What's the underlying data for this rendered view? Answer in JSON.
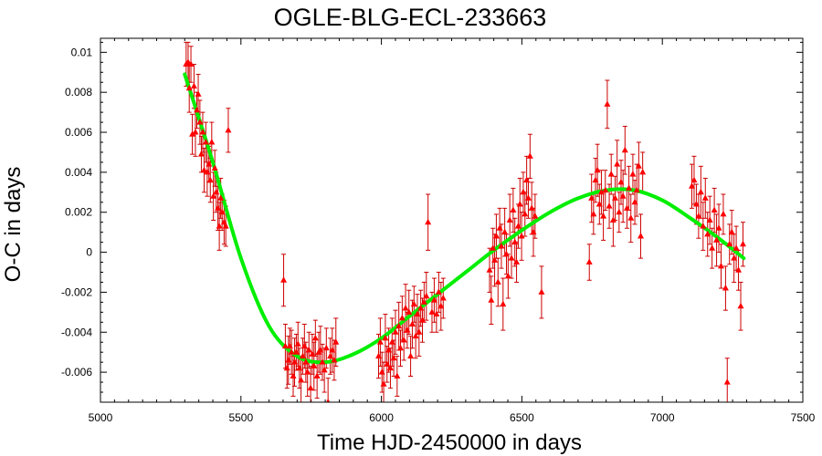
{
  "chart_data": {
    "type": "scatter",
    "title": "OGLE-BLG-ECL-233663",
    "xlabel": "Time HJD-2450000 in days",
    "ylabel": "O-C in days",
    "xlim": [
      5000,
      7500
    ],
    "ylim": [
      -0.0075,
      0.0107
    ],
    "x_ticks": [
      5000,
      5500,
      6000,
      6500,
      7000,
      7500
    ],
    "y_ticks": [
      -0.006,
      -0.004,
      -0.002,
      0,
      0.002,
      0.004,
      0.006,
      0.008,
      0.01
    ],
    "x_tick_labels": [
      "5000",
      "5500",
      "6000",
      "6500",
      "7000",
      "7500"
    ],
    "y_tick_labels": [
      "-0.006",
      "-0.004",
      "-0.002",
      "0",
      "0.002",
      "0.004",
      "0.006",
      "0.008",
      "0.01"
    ],
    "grid": false,
    "colors": {
      "points": "#ff0000",
      "errorbars": "#cc0000",
      "fit": "#00ee00"
    },
    "series": [
      {
        "style": "points-with-errorbars",
        "points": [
          [
            5305,
            0.0094,
            0.0011
          ],
          [
            5312,
            0.0095,
            0.001
          ],
          [
            5316,
            0.0082,
            0.0012
          ],
          [
            5322,
            0.0094,
            0.0009
          ],
          [
            5327,
            0.0059,
            0.001
          ],
          [
            5333,
            0.0083,
            0.0011
          ],
          [
            5338,
            0.006,
            0.0012
          ],
          [
            5343,
            0.0071,
            0.0009
          ],
          [
            5348,
            0.0079,
            0.001
          ],
          [
            5354,
            0.0065,
            0.0011
          ],
          [
            5359,
            0.0049,
            0.0009
          ],
          [
            5364,
            0.006,
            0.001
          ],
          [
            5369,
            0.0041,
            0.0011
          ],
          [
            5375,
            0.0055,
            0.001
          ],
          [
            5380,
            0.004,
            0.0012
          ],
          [
            5386,
            0.0044,
            0.0009
          ],
          [
            5391,
            0.0036,
            0.0011
          ],
          [
            5396,
            0.0055,
            0.001
          ],
          [
            5402,
            0.0028,
            0.0012
          ],
          [
            5407,
            0.0042,
            0.0009
          ],
          [
            5412,
            0.003,
            0.001
          ],
          [
            5418,
            0.0022,
            0.0011
          ],
          [
            5423,
            0.0013,
            0.0012
          ],
          [
            5428,
            0.0027,
            0.001
          ],
          [
            5433,
            0.002,
            0.0009
          ],
          [
            5440,
            0.0015,
            0.0011
          ],
          [
            5446,
            0.0013,
            0.001
          ],
          [
            5455,
            0.0061,
            0.0011
          ],
          [
            5652,
            -0.0014,
            0.0013
          ],
          [
            5658,
            -0.0047,
            0.0011
          ],
          [
            5664,
            -0.0058,
            0.001
          ],
          [
            5669,
            -0.0054,
            0.0012
          ],
          [
            5674,
            -0.0047,
            0.0009
          ],
          [
            5680,
            -0.005,
            0.0011
          ],
          [
            5686,
            -0.0062,
            0.001
          ],
          [
            5691,
            -0.0055,
            0.0012
          ],
          [
            5697,
            -0.005,
            0.0009
          ],
          [
            5703,
            -0.0046,
            0.0011
          ],
          [
            5708,
            -0.0058,
            0.001
          ],
          [
            5714,
            -0.0064,
            0.0012
          ],
          [
            5720,
            -0.0052,
            0.0009
          ],
          [
            5726,
            -0.0047,
            0.0011
          ],
          [
            5731,
            -0.0055,
            0.001
          ],
          [
            5737,
            -0.006,
            0.0012
          ],
          [
            5742,
            -0.0049,
            0.0009
          ],
          [
            5748,
            -0.0068,
            0.0011
          ],
          [
            5754,
            -0.0051,
            0.001
          ],
          [
            5760,
            -0.0057,
            0.0012
          ],
          [
            5765,
            -0.0043,
            0.0009
          ],
          [
            5771,
            -0.0062,
            0.0011
          ],
          [
            5777,
            -0.005,
            0.001
          ],
          [
            5783,
            -0.0049,
            0.0012
          ],
          [
            5790,
            -0.0055,
            0.0009
          ],
          [
            5797,
            -0.0059,
            0.0011
          ],
          [
            5804,
            -0.0048,
            0.001
          ],
          [
            5810,
            -0.0075,
            0.0012
          ],
          [
            5818,
            -0.0052,
            0.0009
          ],
          [
            5825,
            -0.0049,
            0.0011
          ],
          [
            5832,
            -0.0054,
            0.001
          ],
          [
            5838,
            -0.0045,
            0.0012
          ],
          [
            5990,
            -0.0052,
            0.0011
          ],
          [
            5996,
            -0.0045,
            0.0012
          ],
          [
            6002,
            -0.006,
            0.001
          ],
          [
            6008,
            -0.0066,
            0.0011
          ],
          [
            6014,
            -0.0043,
            0.0012
          ],
          [
            6020,
            -0.0056,
            0.0009
          ],
          [
            6026,
            -0.0049,
            0.0011
          ],
          [
            6032,
            -0.0058,
            0.001
          ],
          [
            6038,
            -0.0045,
            0.0012
          ],
          [
            6044,
            -0.0053,
            0.0009
          ],
          [
            6050,
            -0.004,
            0.0011
          ],
          [
            6056,
            -0.0062,
            0.001
          ],
          [
            6062,
            -0.0037,
            0.0012
          ],
          [
            6068,
            -0.0048,
            0.0009
          ],
          [
            6074,
            -0.0033,
            0.0011
          ],
          [
            6080,
            -0.0044,
            0.001
          ],
          [
            6086,
            -0.0028,
            0.0012
          ],
          [
            6092,
            -0.0039,
            0.0009
          ],
          [
            6098,
            -0.003,
            0.0011
          ],
          [
            6104,
            -0.0052,
            0.001
          ],
          [
            6110,
            -0.0036,
            0.0012
          ],
          [
            6116,
            -0.0026,
            0.0009
          ],
          [
            6122,
            -0.0042,
            0.0011
          ],
          [
            6128,
            -0.0031,
            0.001
          ],
          [
            6134,
            -0.004,
            0.0012
          ],
          [
            6140,
            -0.0028,
            0.0009
          ],
          [
            6146,
            -0.0034,
            0.0011
          ],
          [
            6152,
            -0.0025,
            0.001
          ],
          [
            6160,
            -0.0022,
            0.0012
          ],
          [
            6166,
            0.0015,
            0.0014
          ],
          [
            6180,
            -0.003,
            0.001
          ],
          [
            6188,
            -0.0024,
            0.0011
          ],
          [
            6196,
            -0.0031,
            0.0009
          ],
          [
            6204,
            -0.002,
            0.001
          ],
          [
            6212,
            -0.0027,
            0.0012
          ],
          [
            6220,
            -0.0023,
            0.001
          ],
          [
            6385,
            -0.0009,
            0.0011
          ],
          [
            6391,
            -0.0024,
            0.0012
          ],
          [
            6397,
            0.0002,
            0.001
          ],
          [
            6403,
            -0.0004,
            0.0013
          ],
          [
            6409,
            0.0008,
            0.0011
          ],
          [
            6415,
            -0.0015,
            0.0012
          ],
          [
            6421,
            0.0012,
            0.001
          ],
          [
            6427,
            0.0003,
            0.0011
          ],
          [
            6433,
            -0.0026,
            0.0013
          ],
          [
            6439,
            0.001,
            0.0012
          ],
          [
            6445,
            -0.0001,
            0.001
          ],
          [
            6451,
            -0.0012,
            0.0011
          ],
          [
            6457,
            0.0016,
            0.0013
          ],
          [
            6463,
            -0.0003,
            0.001
          ],
          [
            6469,
            0.0021,
            0.0011
          ],
          [
            6475,
            0.0005,
            0.0012
          ],
          [
            6481,
            -0.0005,
            0.001
          ],
          [
            6487,
            0.0013,
            0.0011
          ],
          [
            6493,
            0.0024,
            0.0013
          ],
          [
            6499,
            0.0008,
            0.0012
          ],
          [
            6505,
            0.003,
            0.001
          ],
          [
            6511,
            0.0019,
            0.0011
          ],
          [
            6517,
            0.0036,
            0.0012
          ],
          [
            6523,
            0.0027,
            0.001
          ],
          [
            6529,
            0.0048,
            0.0011
          ],
          [
            6535,
            0.0022,
            0.0013
          ],
          [
            6541,
            0.001,
            0.0012
          ],
          [
            6547,
            0.0018,
            0.0011
          ],
          [
            6570,
            -0.002,
            0.0013
          ],
          [
            6740,
            -0.0005,
            0.0009
          ],
          [
            6748,
            0.0027,
            0.0012
          ],
          [
            6755,
            0.0019,
            0.001
          ],
          [
            6762,
            0.0036,
            0.0011
          ],
          [
            6769,
            0.0041,
            0.0013
          ],
          [
            6776,
            0.0024,
            0.001
          ],
          [
            6783,
            0.003,
            0.0011
          ],
          [
            6790,
            0.0018,
            0.0012
          ],
          [
            6797,
            0.0031,
            0.001
          ],
          [
            6804,
            0.0074,
            0.0012
          ],
          [
            6811,
            0.0023,
            0.0011
          ],
          [
            6818,
            0.0039,
            0.001
          ],
          [
            6825,
            0.0016,
            0.0013
          ],
          [
            6832,
            0.0027,
            0.0011
          ],
          [
            6839,
            0.0044,
            0.0012
          ],
          [
            6846,
            0.002,
            0.001
          ],
          [
            6853,
            0.0035,
            0.0011
          ],
          [
            6860,
            0.0028,
            0.0013
          ],
          [
            6867,
            0.0051,
            0.0012
          ],
          [
            6874,
            0.0022,
            0.001
          ],
          [
            6881,
            0.0032,
            0.0011
          ],
          [
            6888,
            0.0017,
            0.0012
          ],
          [
            6895,
            0.0039,
            0.001
          ],
          [
            6902,
            0.0025,
            0.0011
          ],
          [
            6909,
            0.0031,
            0.0013
          ],
          [
            6916,
            0.0043,
            0.0012
          ],
          [
            6923,
            0.0008,
            0.0011
          ],
          [
            6930,
            0.004,
            0.001
          ],
          [
            7105,
            0.0033,
            0.0011
          ],
          [
            7113,
            0.0036,
            0.0012
          ],
          [
            7121,
            0.0024,
            0.001
          ],
          [
            7129,
            0.0018,
            0.0011
          ],
          [
            7137,
            0.003,
            0.0013
          ],
          [
            7145,
            0.0013,
            0.0012
          ],
          [
            7153,
            0.0027,
            0.001
          ],
          [
            7161,
            0.0009,
            0.0011
          ],
          [
            7169,
            0.0016,
            0.0012
          ],
          [
            7177,
            0.0002,
            0.001
          ],
          [
            7185,
            0.0021,
            0.0011
          ],
          [
            7193,
            0.0006,
            0.0013
          ],
          [
            7201,
            0.0012,
            0.0012
          ],
          [
            7209,
            -0.0007,
            0.0011
          ],
          [
            7217,
            0.0019,
            0.001
          ],
          [
            7225,
            -0.0018,
            0.0011
          ],
          [
            7231,
            -0.0065,
            0.0012
          ],
          [
            7239,
            0.0004,
            0.001
          ],
          [
            7247,
            0.001,
            0.0011
          ],
          [
            7255,
            -0.0003,
            0.0012
          ],
          [
            7263,
            0.0002,
            0.0011
          ],
          [
            7271,
            -0.0009,
            0.001
          ],
          [
            7279,
            -0.0027,
            0.0012
          ],
          [
            7287,
            0.0004,
            0.0011
          ]
        ]
      },
      {
        "style": "fit-curve",
        "x": [
          5300,
          5400,
          5500,
          5600,
          5700,
          5800,
          5900,
          6000,
          6100,
          6200,
          6300,
          6400,
          6500,
          6600,
          6700,
          6800,
          6900,
          7000,
          7100,
          7200,
          7290
        ],
        "values": [
          0.0089,
          0.0045,
          -0.0003,
          -0.0037,
          -0.0052,
          -0.0055,
          -0.0051,
          -0.0043,
          -0.0032,
          -0.0021,
          -0.001,
          0.0001,
          0.0011,
          0.002,
          0.0027,
          0.0031,
          0.0031,
          0.0026,
          0.0017,
          0.0007,
          -0.0003
        ]
      }
    ]
  }
}
